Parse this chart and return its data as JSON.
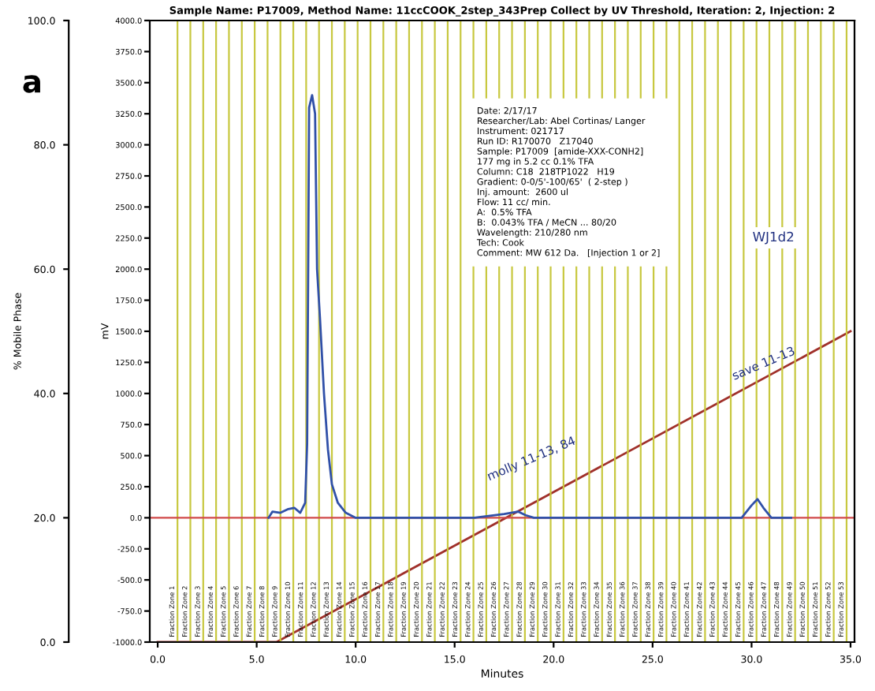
{
  "chart_data": {
    "type": "line",
    "title": "Sample Name: P17009, Method Name: 11ccCOOK_2step_343Prep Collect by UV Threshold, Iteration: 2, Injection: 2",
    "xlabel": "Minutes",
    "ylabel": "mV",
    "y2label": "% Mobile Phase",
    "xlim": [
      -0.4,
      35.2
    ],
    "xticks": [
      {
        "value": 0,
        "label": "0.0"
      },
      {
        "value": 5,
        "label": "5.0"
      },
      {
        "value": 10,
        "label": "10.0"
      },
      {
        "value": 15,
        "label": "15.0"
      },
      {
        "value": 20,
        "label": "20.0"
      },
      {
        "value": 25,
        "label": "25.0"
      },
      {
        "value": 30,
        "label": "30.0"
      },
      {
        "value": 35,
        "label": "35.0"
      }
    ],
    "ylim": [
      -1000,
      4000
    ],
    "yticks": [
      {
        "value": -1000,
        "label": "-1000.0"
      },
      {
        "value": -750,
        "label": "-750.0"
      },
      {
        "value": -500,
        "label": "-500.0"
      },
      {
        "value": -250,
        "label": "-250.0"
      },
      {
        "value": 0,
        "label": "0.0"
      },
      {
        "value": 250,
        "label": "250.0"
      },
      {
        "value": 500,
        "label": "500.0"
      },
      {
        "value": 750,
        "label": "750.0"
      },
      {
        "value": 1000,
        "label": "1000.0"
      },
      {
        "value": 1250,
        "label": "1250.0"
      },
      {
        "value": 1500,
        "label": "1500.0"
      },
      {
        "value": 1750,
        "label": "1750.0"
      },
      {
        "value": 2000,
        "label": "2000.0"
      },
      {
        "value": 2250,
        "label": "2250.0"
      },
      {
        "value": 2500,
        "label": "2500.0"
      },
      {
        "value": 2750,
        "label": "2750.0"
      },
      {
        "value": 3000,
        "label": "3000.0"
      },
      {
        "value": 3250,
        "label": "3250.0"
      },
      {
        "value": 3500,
        "label": "3500.0"
      },
      {
        "value": 3750,
        "label": "3750.0"
      },
      {
        "value": 4000,
        "label": "4000.0"
      }
    ],
    "y2lim": [
      0,
      100
    ],
    "y2ticks": [
      {
        "value": 0,
        "label": "0.0"
      },
      {
        "value": 20,
        "label": "20.0"
      },
      {
        "value": 40,
        "label": "40.0"
      },
      {
        "value": 60,
        "label": "60.0"
      },
      {
        "value": 80,
        "label": "80.0"
      },
      {
        "value": 100,
        "label": "100.0"
      }
    ],
    "series": [
      {
        "color": "#3050a8",
        "x": [
          5.6,
          5.8,
          6.2,
          6.6,
          6.9,
          7.2,
          7.45,
          7.55,
          7.65,
          7.8,
          7.95,
          8.05,
          8.2,
          8.4,
          8.6,
          8.8,
          9.1,
          9.5,
          10,
          16,
          17.5,
          18.2,
          18.6,
          19,
          29.5,
          30,
          30.3,
          30.6,
          31,
          32
        ],
        "values": [
          0,
          50,
          40,
          70,
          80,
          40,
          120,
          600,
          3300,
          3400,
          3250,
          2000,
          1600,
          1000,
          550,
          270,
          120,
          40,
          0,
          0,
          30,
          50,
          20,
          0,
          0,
          100,
          150,
          80,
          0,
          0
        ]
      },
      {
        "color": "#a0302a",
        "axis": "y2",
        "x": [
          0,
          6,
          35
        ],
        "values": [
          0,
          0,
          50
        ]
      }
    ],
    "ref_lines": [
      {
        "axis": "y",
        "value": 0,
        "color": "#d04848"
      },
      {
        "axis": "x",
        "value": 1.0,
        "label": "Fraction Zone 1",
        "color": "#c8c840"
      },
      {
        "axis": "x",
        "value": 1.65,
        "label": "Fraction Zone 2",
        "color": "#c8c840"
      },
      {
        "axis": "x",
        "value": 2.3,
        "label": "Fraction Zone 3",
        "color": "#c8c840"
      },
      {
        "axis": "x",
        "value": 2.95,
        "label": "Fraction Zone 4",
        "color": "#c8c840"
      },
      {
        "axis": "x",
        "value": 3.6,
        "label": "Fraction Zone 5",
        "color": "#c8c840"
      },
      {
        "axis": "x",
        "value": 4.25,
        "label": "Fraction Zone 6",
        "color": "#c8c840"
      },
      {
        "axis": "x",
        "value": 4.9,
        "label": "Fraction Zone 7",
        "color": "#c8c840"
      },
      {
        "axis": "x",
        "value": 5.55,
        "label": "Fraction Zone 8",
        "color": "#c8c840"
      },
      {
        "axis": "x",
        "value": 6.2,
        "label": "Fraction Zone 9",
        "color": "#c8c840"
      },
      {
        "axis": "x",
        "value": 6.85,
        "label": "Fraction Zone 10",
        "color": "#c8c840"
      },
      {
        "axis": "x",
        "value": 7.5,
        "label": "Fraction Zone 11",
        "color": "#c8c840"
      },
      {
        "axis": "x",
        "value": 8.15,
        "label": "Fraction Zone 12",
        "color": "#c8c840"
      },
      {
        "axis": "x",
        "value": 8.8,
        "label": "Fraction Zone 13",
        "color": "#c8c840"
      },
      {
        "axis": "x",
        "value": 9.45,
        "label": "Fraction Zone 14",
        "color": "#c8c840"
      },
      {
        "axis": "x",
        "value": 10.1,
        "label": "Fraction Zone 15",
        "color": "#c8c840"
      },
      {
        "axis": "x",
        "value": 10.75,
        "label": "Fraction Zone 16",
        "color": "#c8c840"
      },
      {
        "axis": "x",
        "value": 11.4,
        "label": "Fraction Zone 17",
        "color": "#c8c840"
      },
      {
        "axis": "x",
        "value": 12.05,
        "label": "Fraction Zone 18",
        "color": "#c8c840"
      },
      {
        "axis": "x",
        "value": 12.7,
        "label": "Fraction Zone 19",
        "color": "#c8c840"
      },
      {
        "axis": "x",
        "value": 13.35,
        "label": "Fraction Zone 20",
        "color": "#c8c840"
      },
      {
        "axis": "x",
        "value": 14.0,
        "label": "Fraction Zone 21",
        "color": "#c8c840"
      },
      {
        "axis": "x",
        "value": 14.65,
        "label": "Fraction Zone 22",
        "color": "#c8c840"
      },
      {
        "axis": "x",
        "value": 15.3,
        "label": "Fraction Zone 23",
        "color": "#c8c840"
      },
      {
        "axis": "x",
        "value": 15.95,
        "label": "Fraction Zone 24",
        "color": "#c8c840"
      },
      {
        "axis": "x",
        "value": 16.6,
        "label": "Fraction Zone 25",
        "color": "#c8c840"
      },
      {
        "axis": "x",
        "value": 17.25,
        "label": "Fraction Zone 26",
        "color": "#c8c840"
      },
      {
        "axis": "x",
        "value": 17.9,
        "label": "Fraction Zone 27",
        "color": "#c8c840"
      },
      {
        "axis": "x",
        "value": 18.55,
        "label": "Fraction Zone 28",
        "color": "#c8c840"
      },
      {
        "axis": "x",
        "value": 19.2,
        "label": "Fraction Zone 29",
        "color": "#c8c840"
      },
      {
        "axis": "x",
        "value": 19.85,
        "label": "Fraction Zone 30",
        "color": "#c8c840"
      },
      {
        "axis": "x",
        "value": 20.5,
        "label": "Fraction Zone 31",
        "color": "#c8c840"
      },
      {
        "axis": "x",
        "value": 21.15,
        "label": "Fraction Zone 32",
        "color": "#c8c840"
      },
      {
        "axis": "x",
        "value": 21.8,
        "label": "Fraction Zone 33",
        "color": "#c8c840"
      },
      {
        "axis": "x",
        "value": 22.45,
        "label": "Fraction Zone 34",
        "color": "#c8c840"
      },
      {
        "axis": "x",
        "value": 23.1,
        "label": "Fraction Zone 35",
        "color": "#c8c840"
      },
      {
        "axis": "x",
        "value": 23.75,
        "label": "Fraction Zone 36",
        "color": "#c8c840"
      },
      {
        "axis": "x",
        "value": 24.4,
        "label": "Fraction Zone 37",
        "color": "#c8c840"
      },
      {
        "axis": "x",
        "value": 25.05,
        "label": "Fraction Zone 38",
        "color": "#c8c840"
      },
      {
        "axis": "x",
        "value": 25.7,
        "label": "Fraction Zone 39",
        "color": "#c8c840"
      },
      {
        "axis": "x",
        "value": 26.35,
        "label": "Fraction Zone 40",
        "color": "#c8c840"
      },
      {
        "axis": "x",
        "value": 27.0,
        "label": "Fraction Zone 41",
        "color": "#c8c840"
      },
      {
        "axis": "x",
        "value": 27.65,
        "label": "Fraction Zone 42",
        "color": "#c8c840"
      },
      {
        "axis": "x",
        "value": 28.3,
        "label": "Fraction Zone 43",
        "color": "#c8c840"
      },
      {
        "axis": "x",
        "value": 28.95,
        "label": "Fraction Zone 44",
        "color": "#c8c840"
      },
      {
        "axis": "x",
        "value": 29.6,
        "label": "Fraction Zone 45",
        "color": "#c8c840"
      },
      {
        "axis": "x",
        "value": 30.25,
        "label": "Fraction Zone 46",
        "color": "#c8c840"
      },
      {
        "axis": "x",
        "value": 30.9,
        "label": "Fraction Zone 47",
        "color": "#c8c840"
      },
      {
        "axis": "x",
        "value": 31.55,
        "label": "Fraction Zone 48",
        "color": "#c8c840"
      },
      {
        "axis": "x",
        "value": 32.2,
        "label": "Fraction Zone 49",
        "color": "#c8c840"
      },
      {
        "axis": "x",
        "value": 32.85,
        "label": "Fraction Zone 50",
        "color": "#c8c840"
      },
      {
        "axis": "x",
        "value": 33.5,
        "label": "Fraction Zone 51",
        "color": "#c8c840"
      },
      {
        "axis": "x",
        "value": 34.15,
        "label": "Fraction Zone 52",
        "color": "#c8c840"
      },
      {
        "axis": "x",
        "value": 34.8,
        "label": "Fraction Zone 53",
        "color": "#c8c840"
      }
    ],
    "annotations": [
      "a",
      "Date: 2/17/17\nResearcher/Lab: Abel Cortinas/ Langer\nInstrument: 021717\nRun ID: R170070   Z17040\nSample: P17009  [amide-XXX-CONH2]\n177 mg in 5.2 cc 0.1% TFA\nColumn: C18  218TP1022   H19\nGradient: 0-0/5'-100/65'  ( 2-step )\nInj. amount:  2600 ul\nFlow: 11 cc/ min.\nA:  0.5% TFA\nB:  0.043% TFA / MeCN ... 80/20\nWavelength: 210/280 nm\nTech: Cook\nComment: MW 612 Da.   [Injection 1 or 2]",
      "WJ1d2",
      "molly 11-13, 84",
      "save 11-13"
    ],
    "grid": false,
    "legend": false,
    "marker": "none",
    "line_style": "solid"
  }
}
